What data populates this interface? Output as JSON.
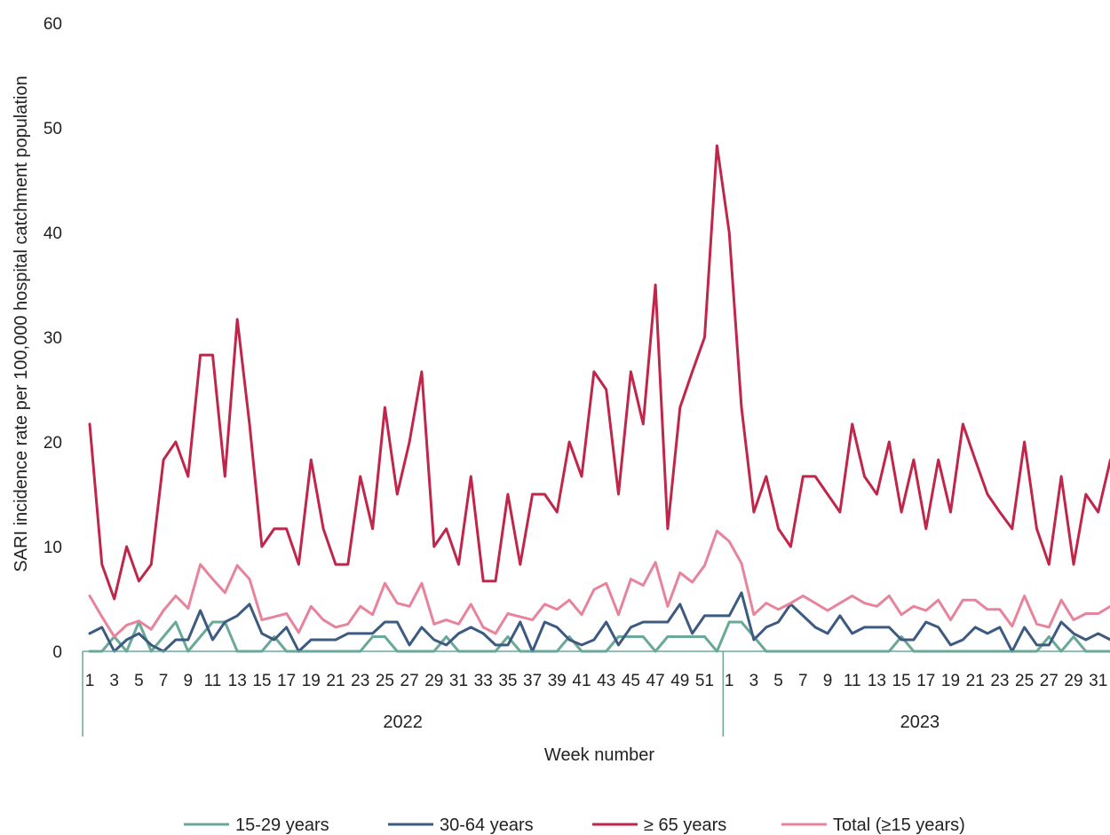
{
  "chart_data": {
    "type": "line",
    "xlabel": "Week number",
    "ylabel": "SARI incidence rate per 100,000 hospital catchment population",
    "ylim": [
      0,
      60
    ],
    "yticks": [
      0,
      10,
      20,
      30,
      40,
      50,
      60
    ],
    "grid": false,
    "legend_position": "bottom",
    "years": [
      {
        "label": "2022",
        "weeks": 52
      },
      {
        "label": "2023",
        "weeks": 32
      }
    ],
    "categories": [
      "1",
      "2",
      "3",
      "4",
      "5",
      "6",
      "7",
      "8",
      "9",
      "10",
      "11",
      "12",
      "13",
      "14",
      "15",
      "16",
      "17",
      "18",
      "19",
      "20",
      "21",
      "22",
      "23",
      "24",
      "25",
      "26",
      "27",
      "28",
      "29",
      "30",
      "31",
      "32",
      "33",
      "34",
      "35",
      "36",
      "37",
      "38",
      "39",
      "40",
      "41",
      "42",
      "43",
      "44",
      "45",
      "46",
      "47",
      "48",
      "49",
      "50",
      "51",
      "52",
      "1",
      "2",
      "3",
      "4",
      "5",
      "6",
      "7",
      "8",
      "9",
      "10",
      "11",
      "12",
      "13",
      "14",
      "15",
      "16",
      "17",
      "18",
      "19",
      "20",
      "21",
      "22",
      "23",
      "24",
      "25",
      "26",
      "27",
      "28",
      "29",
      "30",
      "31",
      "32"
    ],
    "tick_labels_2022": [
      "1",
      "3",
      "5",
      "7",
      "9",
      "11",
      "13",
      "15",
      "17",
      "19",
      "21",
      "23",
      "25",
      "27",
      "29",
      "31",
      "33",
      "35",
      "37",
      "39",
      "41",
      "43",
      "45",
      "47",
      "49",
      "51"
    ],
    "tick_labels_2023": [
      "1",
      "3",
      "5",
      "7",
      "9",
      "11",
      "13",
      "15",
      "17",
      "19",
      "21",
      "23",
      "25",
      "27",
      "29",
      "31"
    ],
    "series": [
      {
        "name": "15-29 years",
        "color": "#6aa898",
        "values": [
          0,
          0,
          1.4,
          0,
          2.8,
          0,
          1.4,
          2.8,
          0,
          1.4,
          2.8,
          2.8,
          0,
          0,
          0,
          1.4,
          0,
          0,
          0,
          0,
          0,
          0,
          0,
          1.4,
          1.4,
          0,
          0,
          0,
          0,
          1.4,
          0,
          0,
          0,
          0,
          1.4,
          0,
          0,
          0,
          0,
          1.4,
          0,
          0,
          0,
          1.4,
          1.4,
          1.4,
          0,
          1.4,
          1.4,
          1.4,
          1.4,
          0,
          2.8,
          2.8,
          1.4,
          0,
          0,
          0,
          0,
          0,
          0,
          0,
          0,
          0,
          0,
          0,
          1.4,
          0,
          0,
          0,
          0,
          0,
          0,
          0,
          0,
          0,
          0,
          0,
          1.4,
          0,
          1.4,
          0,
          0,
          0
        ]
      },
      {
        "name": "30-64 years",
        "color": "#3d5a80",
        "values": [
          1.7,
          2.3,
          0,
          1.1,
          1.7,
          0.6,
          0,
          1.1,
          1.1,
          3.9,
          1.1,
          2.8,
          3.4,
          4.5,
          1.7,
          1.1,
          2.3,
          0,
          1.1,
          1.1,
          1.1,
          1.7,
          1.7,
          1.7,
          2.8,
          2.8,
          0.6,
          2.3,
          1.1,
          0.6,
          1.7,
          2.3,
          1.7,
          0.6,
          0.6,
          2.8,
          0,
          2.8,
          2.3,
          1.1,
          0.6,
          1.1,
          2.8,
          0.6,
          2.3,
          2.8,
          2.8,
          2.8,
          4.5,
          1.7,
          3.4,
          3.4,
          3.4,
          5.6,
          1.1,
          2.3,
          2.8,
          4.5,
          3.4,
          2.3,
          1.7,
          3.4,
          1.7,
          2.3,
          2.3,
          2.3,
          1.1,
          1.1,
          2.8,
          2.3,
          0.6,
          1.1,
          2.3,
          1.7,
          2.3,
          0,
          2.3,
          0.6,
          0.6,
          2.8,
          1.7,
          1.1,
          1.7,
          1.1
        ]
      },
      {
        "name": "≥ 65 years",
        "color": "#c0264a",
        "values": [
          21.7,
          8.3,
          5,
          10,
          6.7,
          8.3,
          18.3,
          20,
          16.7,
          28.3,
          28.3,
          16.7,
          31.7,
          21.7,
          10,
          11.7,
          11.7,
          8.3,
          18.3,
          11.7,
          8.3,
          8.3,
          16.7,
          11.7,
          23.3,
          15,
          20,
          26.7,
          10,
          11.7,
          8.3,
          16.7,
          6.7,
          6.7,
          15,
          8.3,
          15,
          15,
          13.3,
          20,
          16.7,
          26.7,
          25,
          15,
          26.7,
          21.7,
          35,
          11.7,
          23.3,
          26.7,
          30,
          48.3,
          40,
          23.3,
          13.3,
          16.7,
          11.7,
          10,
          16.7,
          16.7,
          15,
          13.3,
          21.7,
          16.7,
          15,
          20,
          13.3,
          18.3,
          11.7,
          18.3,
          13.3,
          21.7,
          18.3,
          15,
          13.3,
          11.7,
          20,
          11.7,
          8.3,
          16.7,
          8.3,
          15,
          13.3,
          18.3
        ]
      },
      {
        "name": "Total (≥15 years)",
        "color": "#e8839c",
        "values": [
          5.3,
          3.3,
          1.4,
          2.5,
          2.9,
          2.1,
          3.9,
          5.3,
          4.1,
          8.3,
          6.9,
          5.6,
          8.2,
          6.9,
          3,
          3.3,
          3.6,
          1.8,
          4.3,
          3,
          2.3,
          2.6,
          4.3,
          3.5,
          6.5,
          4.6,
          4.3,
          6.5,
          2.6,
          3,
          2.6,
          4.5,
          2.3,
          1.7,
          3.6,
          3.3,
          3,
          4.5,
          4,
          4.9,
          3.5,
          5.9,
          6.5,
          3.5,
          6.9,
          6.3,
          8.5,
          4.3,
          7.5,
          6.6,
          8.2,
          11.5,
          10.5,
          8.4,
          3.5,
          4.6,
          4,
          4.6,
          5.3,
          4.6,
          3.9,
          4.6,
          5.3,
          4.6,
          4.3,
          5.3,
          3.5,
          4.3,
          3.9,
          4.9,
          3,
          4.9,
          4.9,
          4,
          4,
          2.4,
          5.3,
          2.6,
          2.3,
          4.9,
          3,
          3.6,
          3.6,
          4.3
        ]
      }
    ]
  }
}
